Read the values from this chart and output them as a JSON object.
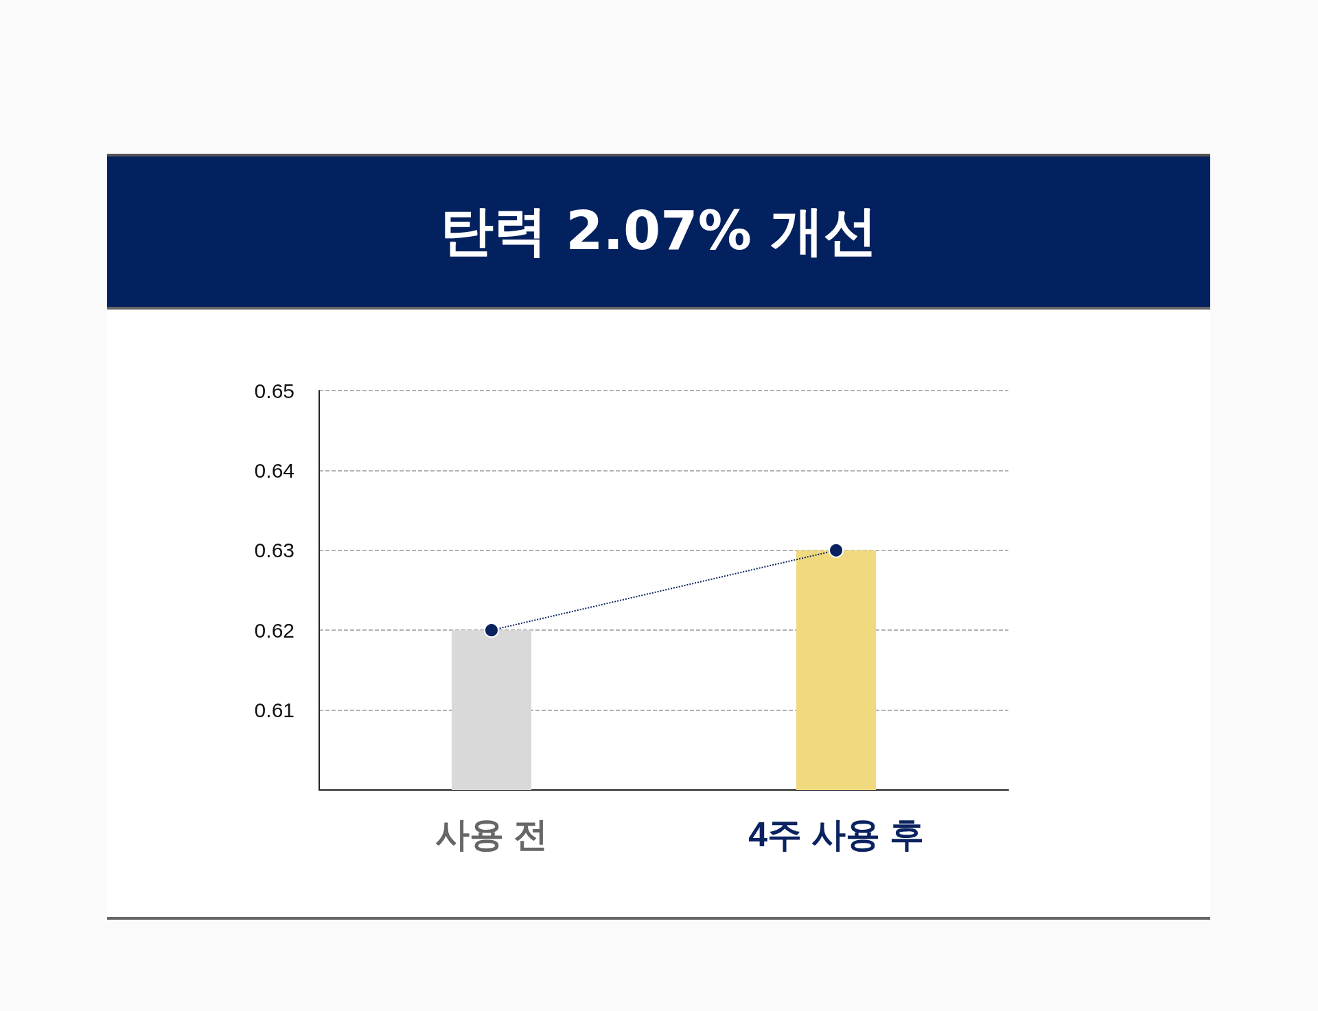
{
  "chart_data": {
    "type": "bar",
    "title": "탄력 2.07% 개선",
    "categories": [
      "사용 전",
      "4주 사용 후"
    ],
    "series": [
      {
        "colors": [
          "#d9d9d9",
          "#f0d97f"
        ],
        "values": [
          0.62,
          0.63
        ]
      },
      {
        "type": "line",
        "color": "#0a2260",
        "values": [
          0.62,
          0.63
        ],
        "marker": "circle",
        "line_style": "dotted"
      }
    ],
    "ylim": [
      0.6,
      0.65
    ],
    "yticks": [
      {
        "value": 0.6,
        "label": null
      },
      0.61,
      0.62,
      0.63,
      0.64,
      0.65
    ],
    "grid": "y"
  }
}
